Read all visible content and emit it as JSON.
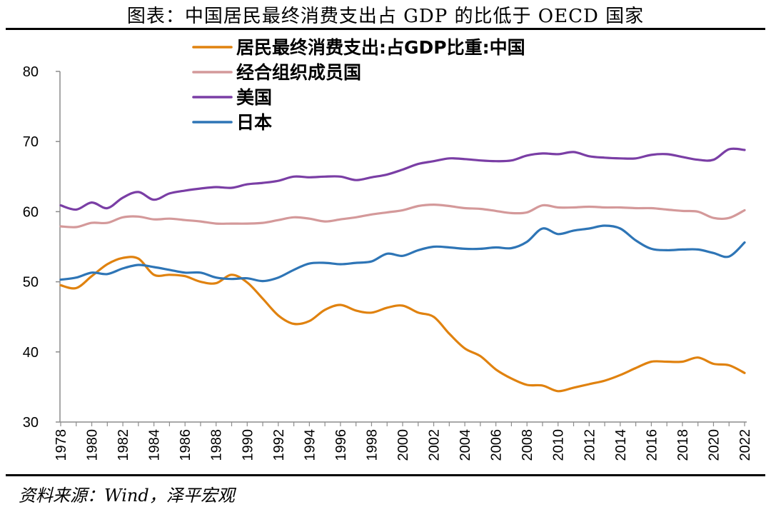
{
  "title": "图表：中国居民最终消费支出占 GDP 的比低于 OECD 国家",
  "source": "资料来源：Wind，泽平宏观",
  "chart_data": {
    "type": "line",
    "title": "图表：中国居民最终消费支出占 GDP 的比低于 OECD 国家",
    "xlabel": "",
    "ylabel": "",
    "ylim": [
      30,
      80
    ],
    "yticks": [
      30,
      40,
      50,
      60,
      70,
      80
    ],
    "xlim": [
      1978,
      2022
    ],
    "xticks": [
      "1978",
      "1980",
      "1982",
      "1984",
      "1986",
      "1988",
      "1990",
      "1992",
      "1994",
      "1996",
      "1998",
      "2000",
      "2002",
      "2004",
      "2006",
      "2008",
      "2010",
      "2012",
      "2014",
      "2016",
      "2018",
      "2020",
      "2022"
    ],
    "legend_position": "top-left",
    "grid": false,
    "x": [
      1978,
      1979,
      1980,
      1981,
      1982,
      1983,
      1984,
      1985,
      1986,
      1987,
      1988,
      1989,
      1990,
      1991,
      1992,
      1993,
      1994,
      1995,
      1996,
      1997,
      1998,
      1999,
      2000,
      2001,
      2002,
      2003,
      2004,
      2005,
      2006,
      2007,
      2008,
      2009,
      2010,
      2011,
      2012,
      2013,
      2014,
      2015,
      2016,
      2017,
      2018,
      2019,
      2020,
      2021,
      2022
    ],
    "series": [
      {
        "name": "居民最终消费支出:占GDP比重:中国",
        "color": "#E0820F",
        "values": [
          49.5,
          49.1,
          50.8,
          52.5,
          53.4,
          53.3,
          51.0,
          51.0,
          50.8,
          50.0,
          49.8,
          51.0,
          49.9,
          47.6,
          45.2,
          44.0,
          44.4,
          46.0,
          46.7,
          45.9,
          45.6,
          46.3,
          46.6,
          45.6,
          45.0,
          42.6,
          40.5,
          39.4,
          37.5,
          36.2,
          35.3,
          35.2,
          34.4,
          34.9,
          35.4,
          35.9,
          36.7,
          37.7,
          38.6,
          38.6,
          38.6,
          39.2,
          38.3,
          38.1,
          37.0
        ]
      },
      {
        "name": "经合组织成员国",
        "color": "#D4999A",
        "values": [
          57.9,
          57.8,
          58.4,
          58.4,
          59.2,
          59.3,
          58.9,
          59.0,
          58.8,
          58.6,
          58.3,
          58.3,
          58.3,
          58.4,
          58.8,
          59.2,
          59.0,
          58.6,
          58.9,
          59.2,
          59.6,
          59.9,
          60.2,
          60.8,
          61.0,
          60.8,
          60.5,
          60.4,
          60.1,
          59.8,
          59.9,
          60.9,
          60.6,
          60.6,
          60.7,
          60.6,
          60.6,
          60.5,
          60.5,
          60.3,
          60.1,
          60.0,
          59.1,
          59.1,
          60.2
        ]
      },
      {
        "name": "美国",
        "color": "#7A3EA5",
        "values": [
          60.9,
          60.3,
          61.3,
          60.5,
          62.0,
          62.8,
          61.7,
          62.6,
          63.0,
          63.3,
          63.5,
          63.4,
          63.9,
          64.1,
          64.4,
          65.0,
          64.9,
          65.0,
          65.0,
          64.5,
          64.9,
          65.3,
          66.0,
          66.8,
          67.2,
          67.6,
          67.5,
          67.3,
          67.2,
          67.3,
          68.0,
          68.3,
          68.2,
          68.5,
          67.9,
          67.7,
          67.6,
          67.6,
          68.1,
          68.2,
          67.8,
          67.4,
          67.4,
          68.9,
          68.8
        ]
      },
      {
        "name": "日本",
        "color": "#2E75B6",
        "values": [
          50.3,
          50.6,
          51.3,
          51.1,
          51.9,
          52.4,
          52.1,
          51.7,
          51.3,
          51.3,
          50.6,
          50.4,
          50.5,
          50.1,
          50.6,
          51.7,
          52.6,
          52.7,
          52.5,
          52.7,
          52.9,
          54.0,
          53.7,
          54.5,
          55.0,
          54.9,
          54.7,
          54.7,
          54.9,
          54.8,
          55.7,
          57.6,
          56.8,
          57.3,
          57.6,
          58.0,
          57.6,
          55.9,
          54.7,
          54.5,
          54.6,
          54.6,
          54.1,
          53.6,
          55.6
        ]
      }
    ]
  }
}
